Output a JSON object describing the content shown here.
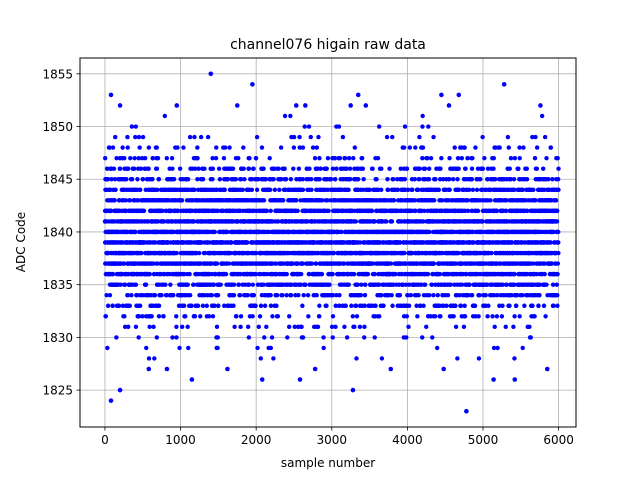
{
  "chart_data": {
    "type": "scatter",
    "title": "channel076 higain raw data",
    "xlabel": "sample number",
    "ylabel": "ADC Code",
    "xlim": [
      -330,
      6230
    ],
    "ylim": [
      1821.5,
      1856.5
    ],
    "xticks": [
      0,
      1000,
      2000,
      3000,
      4000,
      5000,
      6000
    ],
    "yticks": [
      1825,
      1830,
      1835,
      1840,
      1845,
      1850,
      1855
    ],
    "grid": true,
    "marker_color": "#0000ff",
    "sample_count": 6000,
    "outliers": [
      {
        "x": 80,
        "y": 1824
      },
      {
        "x": 200,
        "y": 1825
      },
      {
        "x": 1400,
        "y": 1855
      },
      {
        "x": 1950,
        "y": 1854
      },
      {
        "x": 3280,
        "y": 1825
      },
      {
        "x": 4780,
        "y": 1823
      },
      {
        "x": 5280,
        "y": 1854
      },
      {
        "x": 80,
        "y": 1853
      },
      {
        "x": 3350,
        "y": 1853
      },
      {
        "x": 4450,
        "y": 1853
      },
      {
        "x": 4680,
        "y": 1853
      },
      {
        "x": 1150,
        "y": 1826
      },
      {
        "x": 2080,
        "y": 1826
      },
      {
        "x": 2580,
        "y": 1826
      },
      {
        "x": 5140,
        "y": 1826
      },
      {
        "x": 5420,
        "y": 1826
      },
      {
        "x": 580,
        "y": 1827
      },
      {
        "x": 820,
        "y": 1827
      },
      {
        "x": 1620,
        "y": 1827
      },
      {
        "x": 2780,
        "y": 1827
      },
      {
        "x": 3780,
        "y": 1827
      },
      {
        "x": 4480,
        "y": 1827
      },
      {
        "x": 5850,
        "y": 1827
      },
      {
        "x": 200,
        "y": 1852
      },
      {
        "x": 950,
        "y": 1852
      },
      {
        "x": 1750,
        "y": 1852
      },
      {
        "x": 2530,
        "y": 1852
      },
      {
        "x": 2650,
        "y": 1852
      },
      {
        "x": 3250,
        "y": 1852
      },
      {
        "x": 3450,
        "y": 1852
      },
      {
        "x": 4550,
        "y": 1852
      },
      {
        "x": 5760,
        "y": 1852
      }
    ]
  }
}
